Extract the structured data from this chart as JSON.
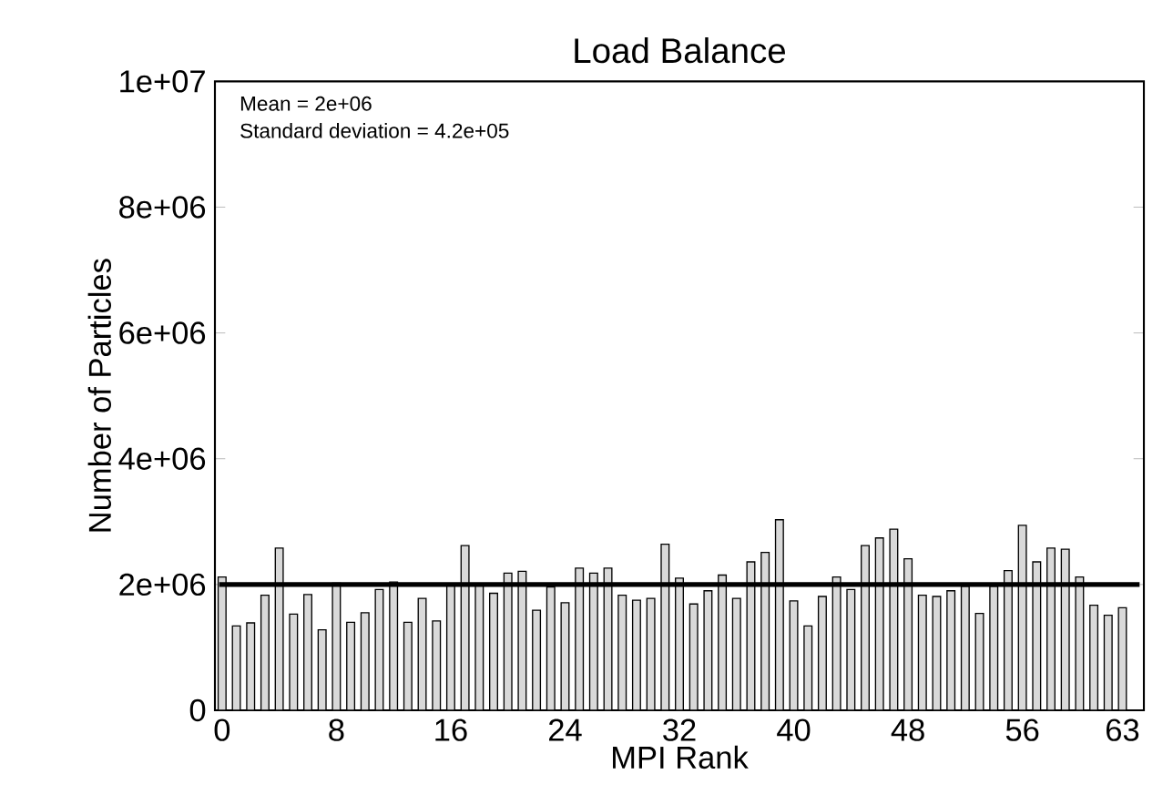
{
  "chart_data": {
    "type": "bar",
    "title": "Load Balance",
    "xlabel": "MPI Rank",
    "ylabel": "Number of Particles",
    "x": [
      0,
      1,
      2,
      3,
      4,
      5,
      6,
      7,
      8,
      9,
      10,
      11,
      12,
      13,
      14,
      15,
      16,
      17,
      18,
      19,
      20,
      21,
      22,
      23,
      24,
      25,
      26,
      27,
      28,
      29,
      30,
      31,
      32,
      33,
      34,
      35,
      36,
      37,
      38,
      39,
      40,
      41,
      42,
      43,
      44,
      45,
      46,
      47,
      48,
      49,
      50,
      51,
      52,
      53,
      54,
      55,
      56,
      57,
      58,
      59,
      60,
      61,
      62,
      63
    ],
    "values": [
      2120000,
      1340000,
      1390000,
      1830000,
      2580000,
      1530000,
      1840000,
      1280000,
      2020000,
      1400000,
      1550000,
      1920000,
      2040000,
      1400000,
      1780000,
      1420000,
      2010000,
      2620000,
      2000000,
      1860000,
      2180000,
      2210000,
      1590000,
      1960000,
      1710000,
      2260000,
      2180000,
      2260000,
      1830000,
      1750000,
      1780000,
      2640000,
      2100000,
      1690000,
      1900000,
      2150000,
      1780000,
      2360000,
      2510000,
      3030000,
      1740000,
      1340000,
      1810000,
      2120000,
      1920000,
      2620000,
      2740000,
      2880000,
      2410000,
      1830000,
      1810000,
      1900000,
      1970000,
      1540000,
      1970000,
      2220000,
      2940000,
      2360000,
      2580000,
      2560000,
      2120000,
      1670000,
      1510000,
      1630000
    ],
    "color": "#d9d9d9",
    "xlim": [
      -0.5,
      64.5
    ],
    "xticks": [
      0,
      8,
      16,
      24,
      32,
      40,
      48,
      56,
      63
    ],
    "ylim": [
      0,
      10000000
    ],
    "yticks": [
      {
        "value": 0,
        "label": "0"
      },
      {
        "value": 2000000,
        "label": "2e+06"
      },
      {
        "value": 4000000,
        "label": "4e+06"
      },
      {
        "value": 6000000,
        "label": "6e+06"
      },
      {
        "value": 8000000,
        "label": "8e+06"
      },
      {
        "value": 10000000,
        "label": "1e+07"
      }
    ],
    "ref_lines": [
      {
        "axis": "y",
        "value": 2000000,
        "color": "#000000"
      }
    ],
    "annotations": [
      "Mean = 2e+06",
      "Standard deviation = 4.2e+05"
    ]
  }
}
